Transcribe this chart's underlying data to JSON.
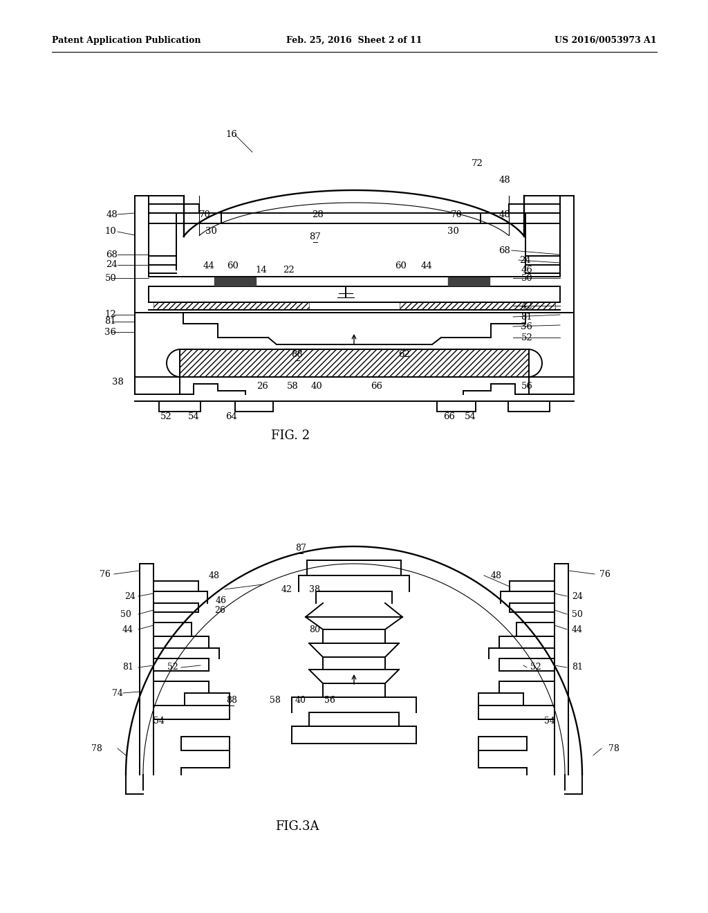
{
  "background_color": "#ffffff",
  "header_left": "Patent Application Publication",
  "header_center": "Feb. 25, 2016  Sheet 2 of 11",
  "header_right": "US 2016/0053973 A1",
  "fig2_caption": "FIG. 2",
  "fig3a_caption": "FIG.3A",
  "line_color": "#000000",
  "lw": 1.4,
  "tlw": 0.8
}
